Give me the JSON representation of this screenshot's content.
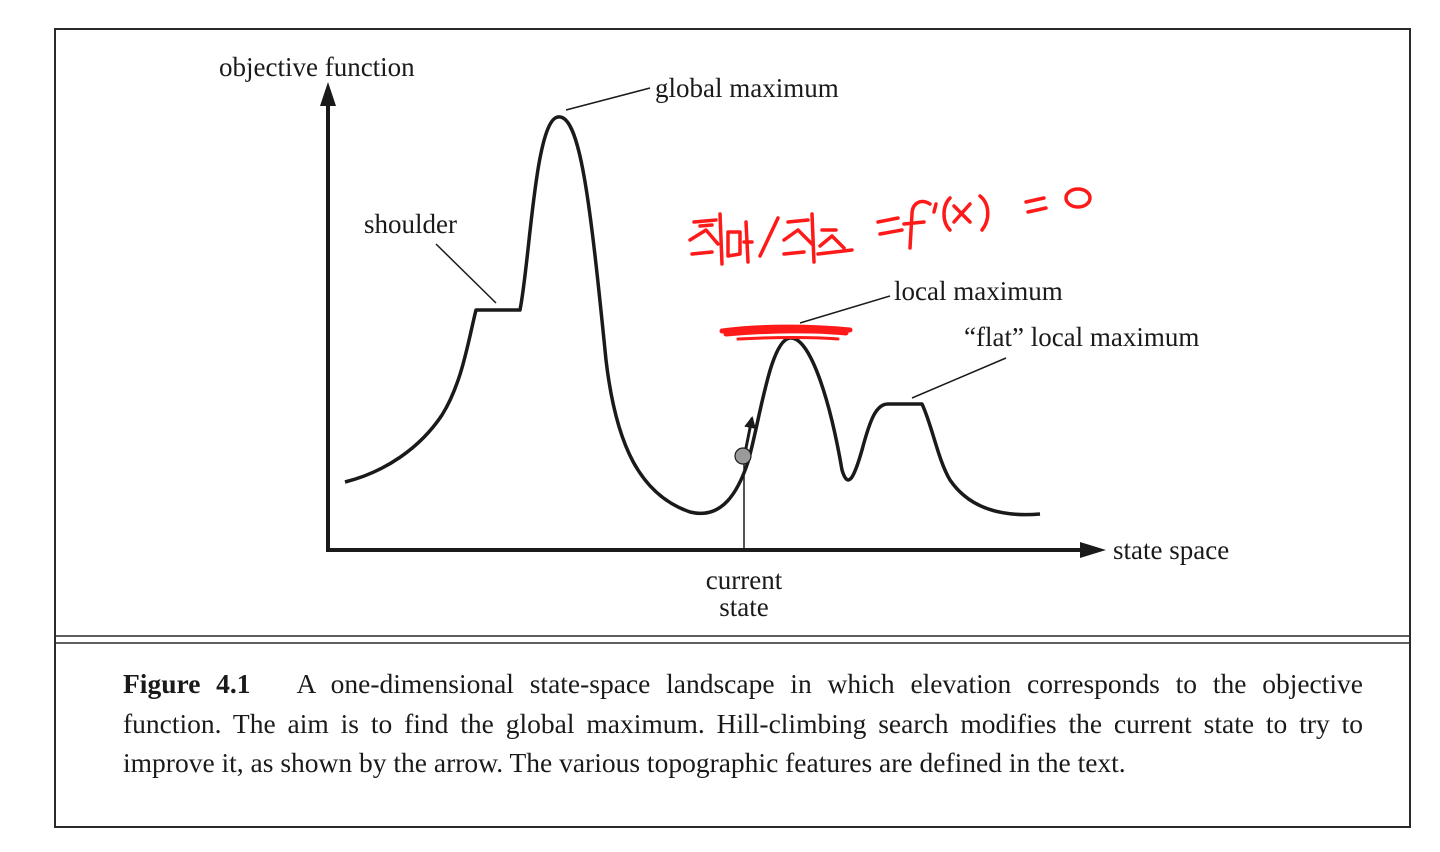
{
  "diagram": {
    "labels": {
      "y_axis": "objective function",
      "x_axis": "state space",
      "global_max": "global maximum",
      "shoulder": "shoulder",
      "local_max": "local maximum",
      "flat_local_max": "“flat” local maximum",
      "current_state_line1": "current",
      "current_state_line2": "state"
    },
    "handwritten_note": "최대/최소 = f'(x) = 0",
    "colors": {
      "ink": "#1a1a1a",
      "annotation_red": "#ff1a1a",
      "state_marker": "#9a9a9a"
    }
  },
  "caption": {
    "figure_label": "Figure 4.1",
    "text": "A one-dimensional state-space landscape in which elevation corresponds to the objective function. The aim is to find the global maximum. Hill-climbing search modifies the current state to try to improve it, as shown by the arrow. The various topographic features are defined in the text."
  }
}
